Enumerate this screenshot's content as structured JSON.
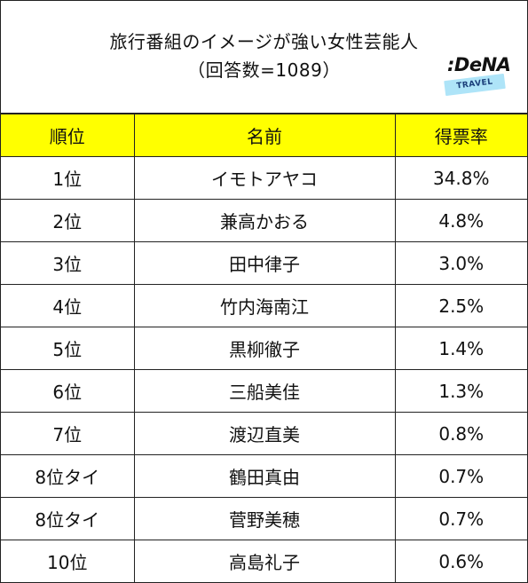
{
  "header": {
    "title_line1": "旅行番組のイメージが強い女性芸能人",
    "title_line2": "（回答数=1089）",
    "logo_text": ":DeNA",
    "logo_band_text": "TRAVEL"
  },
  "table": {
    "columns": [
      "順位",
      "名前",
      "得票率"
    ],
    "rows": [
      {
        "rank": "1位",
        "name": "イモトアヤコ",
        "rate": "34.8%"
      },
      {
        "rank": "2位",
        "name": "兼高かおる",
        "rate": "4.8%"
      },
      {
        "rank": "3位",
        "name": "田中律子",
        "rate": "3.0%"
      },
      {
        "rank": "4位",
        "name": "竹内海南江",
        "rate": "2.5%"
      },
      {
        "rank": "5位",
        "name": "黒柳徹子",
        "rate": "1.4%"
      },
      {
        "rank": "6位",
        "name": "三船美佳",
        "rate": "1.3%"
      },
      {
        "rank": "7位",
        "name": "渡辺直美",
        "rate": "0.8%"
      },
      {
        "rank": "8位タイ",
        "name": "鶴田真由",
        "rate": "0.7%"
      },
      {
        "rank": "8位タイ",
        "name": "菅野美穂",
        "rate": "0.7%"
      },
      {
        "rank": "10位",
        "name": "高島礼子",
        "rate": "0.6%"
      }
    ]
  },
  "colors": {
    "header_fill": "#ffff00",
    "border": "#222222",
    "logo_band": "#aee4f8"
  }
}
